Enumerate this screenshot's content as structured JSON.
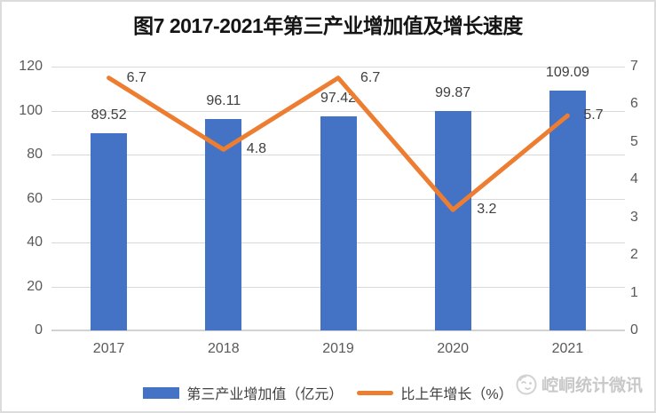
{
  "title": "图7 2017-2021年第三产业增加值及增长速度",
  "legend": {
    "items": [
      {
        "label": "第三产业增加值（亿元）",
        "swatch": "bar",
        "color": "#4472C4"
      },
      {
        "label": "比上年增长（%）",
        "swatch": "line",
        "color": "#ED7D31"
      }
    ]
  },
  "watermark": {
    "icon": "mascot-face-icon",
    "text": "崆峒统计微讯"
  },
  "axes": {
    "left_ticks": [
      "120",
      "100",
      "80",
      "60",
      "40",
      "20",
      "0"
    ],
    "right_ticks": [
      "7",
      "6",
      "5",
      "4",
      "3",
      "2",
      "1",
      "0"
    ],
    "x_ticks": [
      "2017",
      "2018",
      "2019",
      "2020",
      "2021"
    ]
  },
  "chart_data": {
    "type": "bar+line combo",
    "title": "图7 2017-2021年第三产业增加值及增长速度",
    "categories": [
      "2017",
      "2018",
      "2019",
      "2020",
      "2021"
    ],
    "series": [
      {
        "name": "第三产业增加值（亿元）",
        "type": "bar",
        "axis": "left",
        "color": "#4472C4",
        "values": [
          89.52,
          96.11,
          97.42,
          99.87,
          109.09
        ]
      },
      {
        "name": "比上年增长（%）",
        "type": "line",
        "axis": "right",
        "color": "#ED7D31",
        "values": [
          6.7,
          4.8,
          6.7,
          3.2,
          5.7
        ]
      }
    ],
    "left_axis": {
      "min": 0,
      "max": 120,
      "step": 20
    },
    "right_axis": {
      "min": 0,
      "max": 7,
      "step": 1
    },
    "grid": true,
    "legend_position": "bottom",
    "colors": {
      "bar": "#4472C4",
      "line": "#ED7D31",
      "gridline": "#D9D9D9",
      "axis_text": "#595959",
      "value_text": "#404040",
      "watermark_text": "#C8C8C8",
      "frame_border": "#DCDCDC"
    }
  }
}
